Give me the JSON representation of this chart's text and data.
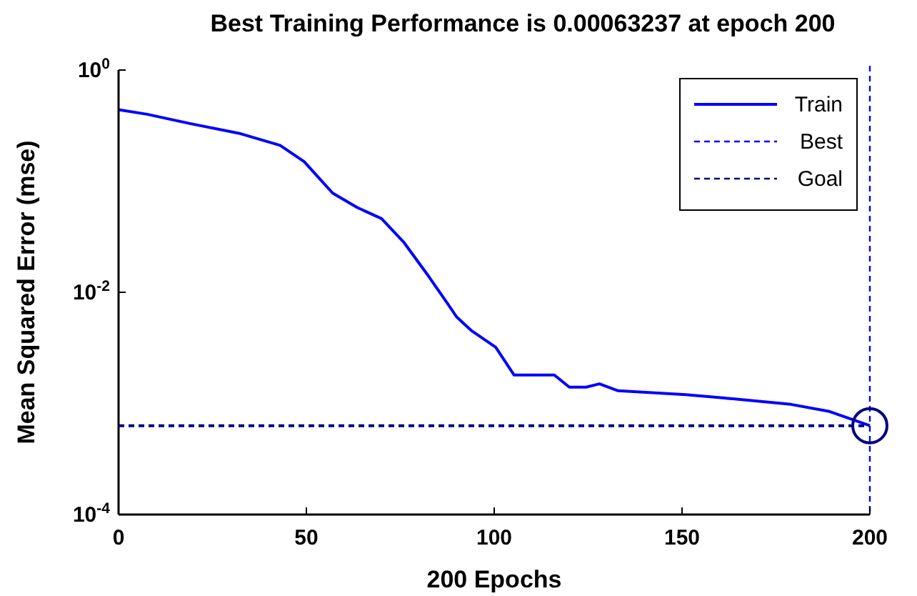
{
  "chart_data": {
    "type": "line",
    "title": "Best Training Performance is 0.00063237 at epoch 200",
    "xlabel": "200 Epochs",
    "ylabel": "Mean Squared Error  (mse)",
    "log": "y",
    "xlim": [
      0,
      200
    ],
    "ylim": [
      0.0001,
      1
    ],
    "xticks": [
      0,
      50,
      100,
      150,
      200
    ],
    "yticks": [
      {
        "value": 0.0001,
        "label": "10$^{-4}$"
      },
      {
        "value": 0.01,
        "label": "10$^{-2}$"
      },
      {
        "value": 1,
        "label": "10$^{0}$"
      }
    ],
    "grid": false,
    "legend": "top right",
    "line_style": "solid",
    "marker": "none",
    "series": [
      {
        "name": "Train",
        "color": "#0000ff",
        "x": [
          0,
          7.6,
          19,
          32,
          43,
          49.4,
          57,
          63.5,
          70,
          76,
          82.5,
          87.5,
          90,
          94,
          100.4,
          105.3,
          116,
          120,
          124.5,
          128,
          133,
          151,
          163.5,
          179,
          189,
          200
        ],
        "values": [
          0.44,
          0.4,
          0.33,
          0.27,
          0.21,
          0.15,
          0.078,
          0.058,
          0.046,
          0.028,
          0.014,
          0.008,
          0.006,
          0.0045,
          0.0032,
          0.0018,
          0.0018,
          0.0014,
          0.0014,
          0.0015,
          0.0013,
          0.0012,
          0.0011,
          0.00098,
          0.00085,
          0.00063
        ]
      },
      {
        "type": "scatter",
        "marker": "circle",
        "color": "#000080",
        "x": [
          200
        ],
        "values": [
          0.00063
        ]
      }
    ],
    "ref_lines": [
      {
        "axis": "x",
        "value": 200,
        "label": "Best",
        "color": "#0000ff",
        "line_style": "dashed"
      },
      {
        "axis": "y",
        "value": 0.00063,
        "label": "Goal",
        "color": "#000080",
        "line_style": "dashed"
      }
    ]
  }
}
